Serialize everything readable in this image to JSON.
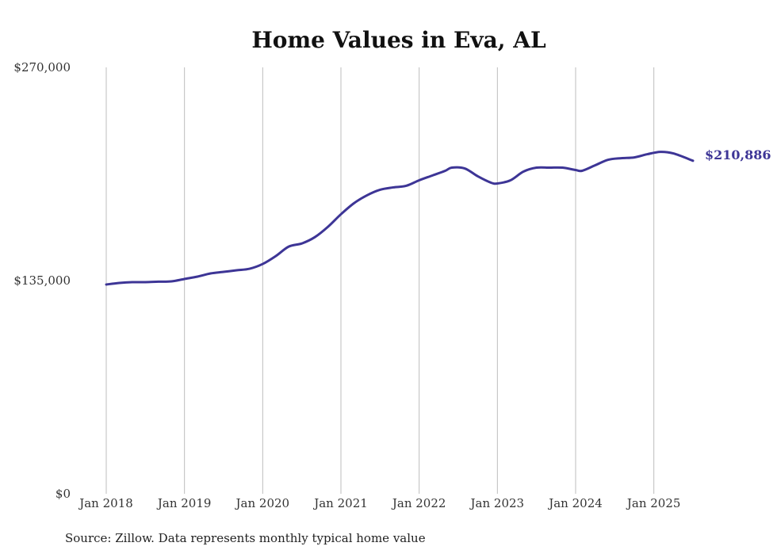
{
  "chart_data": {
    "type": "line",
    "title": "Home Values in Eva, AL",
    "source": "Source: Zillow. Data represents monthly typical home value",
    "xlabel": "",
    "ylabel": "",
    "ylim": [
      0,
      270000
    ],
    "yticks": [
      {
        "value": 0,
        "label": "$0"
      },
      {
        "value": 135000,
        "label": "$135,000"
      },
      {
        "value": 270000,
        "label": "$270,000"
      }
    ],
    "xlim": [
      2018.0,
      2025.5
    ],
    "xticks": [
      {
        "value": 2018,
        "label": "Jan 2018"
      },
      {
        "value": 2019,
        "label": "Jan 2019"
      },
      {
        "value": 2020,
        "label": "Jan 2020"
      },
      {
        "value": 2021,
        "label": "Jan 2021"
      },
      {
        "value": 2022,
        "label": "Jan 2022"
      },
      {
        "value": 2023,
        "label": "Jan 2023"
      },
      {
        "value": 2024,
        "label": "Jan 2024"
      },
      {
        "value": 2025,
        "label": "Jan 2025"
      }
    ],
    "grid": {
      "vertical": true,
      "horizontal": false
    },
    "line_color": "#3d3596",
    "end_label": "$210,886",
    "series": [
      {
        "points": [
          [
            2018.0,
            132500
          ],
          [
            2018.167,
            133500
          ],
          [
            2018.333,
            134000
          ],
          [
            2018.5,
            134000
          ],
          [
            2018.667,
            134300
          ],
          [
            2018.833,
            134500
          ],
          [
            2019.0,
            136000
          ],
          [
            2019.167,
            137500
          ],
          [
            2019.333,
            139500
          ],
          [
            2019.5,
            140500
          ],
          [
            2019.667,
            141500
          ],
          [
            2019.833,
            142500
          ],
          [
            2020.0,
            145500
          ],
          [
            2020.167,
            150500
          ],
          [
            2020.333,
            156500
          ],
          [
            2020.5,
            158500
          ],
          [
            2020.667,
            162500
          ],
          [
            2020.833,
            169000
          ],
          [
            2021.0,
            177000
          ],
          [
            2021.167,
            184000
          ],
          [
            2021.333,
            189000
          ],
          [
            2021.5,
            192500
          ],
          [
            2021.667,
            194000
          ],
          [
            2021.833,
            195000
          ],
          [
            2022.0,
            198500
          ],
          [
            2022.167,
            201500
          ],
          [
            2022.333,
            204500
          ],
          [
            2022.417,
            206500
          ],
          [
            2022.583,
            206000
          ],
          [
            2022.75,
            201000
          ],
          [
            2022.917,
            197000
          ],
          [
            2023.0,
            196500
          ],
          [
            2023.167,
            198500
          ],
          [
            2023.333,
            204000
          ],
          [
            2023.5,
            206500
          ],
          [
            2023.667,
            206500
          ],
          [
            2023.833,
            206500
          ],
          [
            2024.0,
            205000
          ],
          [
            2024.083,
            204500
          ],
          [
            2024.25,
            208000
          ],
          [
            2024.417,
            211500
          ],
          [
            2024.583,
            212500
          ],
          [
            2024.75,
            213000
          ],
          [
            2024.917,
            215000
          ],
          [
            2025.083,
            216500
          ],
          [
            2025.25,
            215500
          ],
          [
            2025.5,
            210886
          ]
        ]
      }
    ]
  }
}
